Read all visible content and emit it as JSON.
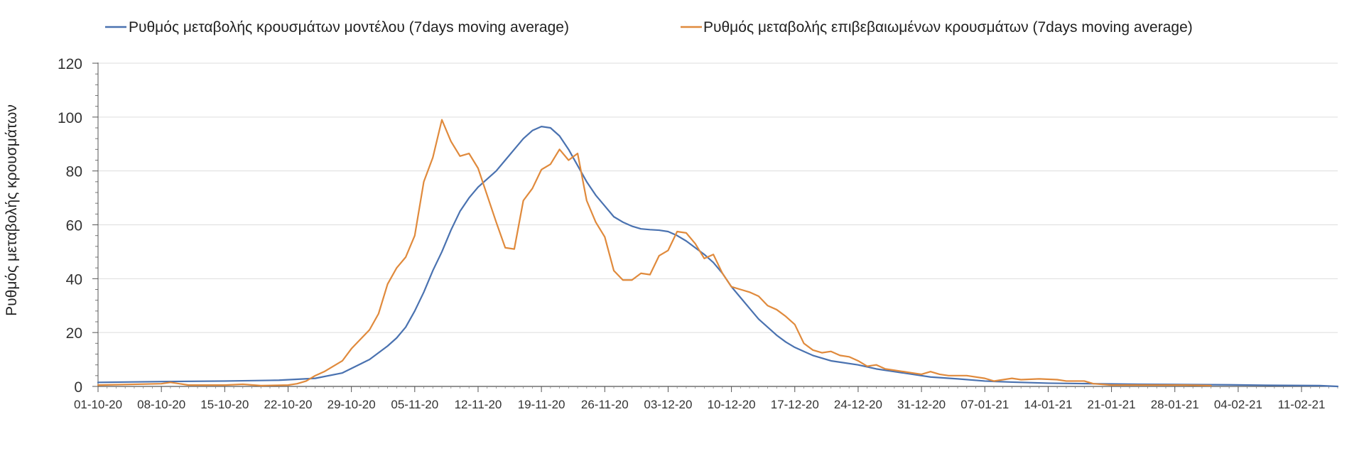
{
  "chart_data": {
    "type": "line",
    "title": "",
    "ylabel": "Ρυθμός μεταβολής κρουσμάτων",
    "xlabel": "",
    "ylim": [
      0,
      120
    ],
    "yticks": [
      0,
      20,
      40,
      60,
      80,
      100,
      120
    ],
    "x_tick_labels": [
      "01-10-20",
      "08-10-20",
      "15-10-20",
      "22-10-20",
      "29-10-20",
      "05-11-20",
      "12-11-20",
      "19-11-20",
      "26-11-20",
      "03-12-20",
      "10-12-20",
      "17-12-20",
      "24-12-20",
      "31-12-20",
      "07-01-21",
      "14-01-21",
      "21-01-21",
      "28-01-21",
      "04-02-21",
      "11-02-21"
    ],
    "x_tick_days": [
      0,
      7,
      14,
      21,
      28,
      35,
      42,
      49,
      56,
      63,
      70,
      77,
      84,
      91,
      98,
      105,
      112,
      119,
      126,
      133
    ],
    "xlim_days": [
      0,
      137
    ],
    "grid": true,
    "legend_position": "top",
    "series": [
      {
        "name": "Ρυθμός μεταβολής κρουσμάτων μοντέλου (7days moving average)",
        "color": "#4A72B0",
        "points": [
          [
            0,
            1.5
          ],
          [
            7,
            1.8
          ],
          [
            14,
            2
          ],
          [
            20,
            2.3
          ],
          [
            24,
            3
          ],
          [
            27,
            5
          ],
          [
            30,
            10
          ],
          [
            32,
            15
          ],
          [
            33,
            18
          ],
          [
            34,
            22
          ],
          [
            35,
            28
          ],
          [
            36,
            35
          ],
          [
            37,
            43
          ],
          [
            38,
            50
          ],
          [
            39,
            58
          ],
          [
            40,
            65
          ],
          [
            41,
            70
          ],
          [
            42,
            74
          ],
          [
            43,
            77
          ],
          [
            44,
            80
          ],
          [
            45,
            84
          ],
          [
            46,
            88
          ],
          [
            47,
            92
          ],
          [
            48,
            95
          ],
          [
            49,
            96.5
          ],
          [
            50,
            96
          ],
          [
            51,
            93
          ],
          [
            52,
            88
          ],
          [
            53,
            82
          ],
          [
            54,
            76
          ],
          [
            55,
            71
          ],
          [
            56,
            67
          ],
          [
            57,
            63
          ],
          [
            58,
            61
          ],
          [
            59,
            59.5
          ],
          [
            60,
            58.5
          ],
          [
            61,
            58.2
          ],
          [
            62,
            58
          ],
          [
            63,
            57.5
          ],
          [
            64,
            56
          ],
          [
            65,
            54
          ],
          [
            66,
            51.5
          ],
          [
            67,
            49
          ],
          [
            68,
            46
          ],
          [
            69,
            42
          ],
          [
            70,
            37
          ],
          [
            71,
            33
          ],
          [
            72,
            29
          ],
          [
            73,
            25
          ],
          [
            74,
            22
          ],
          [
            75,
            19
          ],
          [
            76,
            16.5
          ],
          [
            77,
            14.5
          ],
          [
            78,
            13
          ],
          [
            79,
            11.5
          ],
          [
            80,
            10.5
          ],
          [
            81,
            9.5
          ],
          [
            82,
            9
          ],
          [
            84,
            8
          ],
          [
            86,
            6.5
          ],
          [
            88,
            5.5
          ],
          [
            90,
            4.5
          ],
          [
            92,
            3.5
          ],
          [
            95,
            2.8
          ],
          [
            98,
            2
          ],
          [
            101,
            1.6
          ],
          [
            105,
            1.2
          ],
          [
            110,
            1
          ],
          [
            115,
            0.8
          ],
          [
            120,
            0.7
          ],
          [
            125,
            0.6
          ],
          [
            130,
            0.4
          ],
          [
            135,
            0.3
          ],
          [
            137,
            0
          ]
        ]
      },
      {
        "name": "Ρυθμός μεταβολής επιβεβαιωμένων κρουσμάτων (7days moving average)",
        "color": "#E08A3C",
        "points": [
          [
            0,
            0.5
          ],
          [
            7,
            1
          ],
          [
            8,
            1.5
          ],
          [
            10,
            0.5
          ],
          [
            14,
            0.5
          ],
          [
            16,
            0.8
          ],
          [
            18,
            0.3
          ],
          [
            21,
            0.5
          ],
          [
            22,
            1
          ],
          [
            23,
            2
          ],
          [
            24,
            4
          ],
          [
            25,
            5.5
          ],
          [
            26,
            7.5
          ],
          [
            27,
            9.5
          ],
          [
            28,
            14
          ],
          [
            29,
            17.5
          ],
          [
            30,
            21
          ],
          [
            31,
            27
          ],
          [
            32,
            38
          ],
          [
            33,
            44
          ],
          [
            34,
            48
          ],
          [
            35,
            56
          ],
          [
            36,
            76
          ],
          [
            37,
            85
          ],
          [
            38,
            99
          ],
          [
            39,
            91
          ],
          [
            40,
            85.5
          ],
          [
            41,
            86.5
          ],
          [
            42,
            81
          ],
          [
            43,
            71
          ],
          [
            44,
            61
          ],
          [
            45,
            51.5
          ],
          [
            46,
            51
          ],
          [
            47,
            69
          ],
          [
            48,
            73.5
          ],
          [
            49,
            80.5
          ],
          [
            50,
            82.5
          ],
          [
            51,
            88
          ],
          [
            52,
            84
          ],
          [
            53,
            86.5
          ],
          [
            54,
            69
          ],
          [
            55,
            61
          ],
          [
            56,
            55.5
          ],
          [
            57,
            43
          ],
          [
            58,
            39.5
          ],
          [
            59,
            39.5
          ],
          [
            60,
            42
          ],
          [
            61,
            41.5
          ],
          [
            62,
            48.5
          ],
          [
            63,
            50.5
          ],
          [
            64,
            57.5
          ],
          [
            65,
            57
          ],
          [
            66,
            53
          ],
          [
            67,
            47.5
          ],
          [
            68,
            49
          ],
          [
            69,
            42
          ],
          [
            70,
            37
          ],
          [
            71,
            36
          ],
          [
            72,
            35
          ],
          [
            73,
            33.5
          ],
          [
            74,
            30
          ],
          [
            75,
            28.5
          ],
          [
            76,
            26
          ],
          [
            77,
            23
          ],
          [
            78,
            16
          ],
          [
            79,
            13.5
          ],
          [
            80,
            12.5
          ],
          [
            81,
            13
          ],
          [
            82,
            11.5
          ],
          [
            83,
            11
          ],
          [
            84,
            9.5
          ],
          [
            85,
            7.5
          ],
          [
            86,
            8
          ],
          [
            87,
            6.5
          ],
          [
            88,
            6
          ],
          [
            89,
            5.5
          ],
          [
            90,
            5
          ],
          [
            91,
            4.5
          ],
          [
            92,
            5.5
          ],
          [
            93,
            4.5
          ],
          [
            94,
            4
          ],
          [
            96,
            4
          ],
          [
            98,
            3
          ],
          [
            99,
            2
          ],
          [
            101,
            3
          ],
          [
            102,
            2.5
          ],
          [
            104,
            2.8
          ],
          [
            106,
            2.5
          ],
          [
            107,
            2
          ],
          [
            109,
            2
          ],
          [
            110,
            1
          ],
          [
            112,
            0.5
          ],
          [
            115,
            0.5
          ],
          [
            120,
            0.5
          ],
          [
            123,
            0.3
          ]
        ]
      }
    ]
  }
}
